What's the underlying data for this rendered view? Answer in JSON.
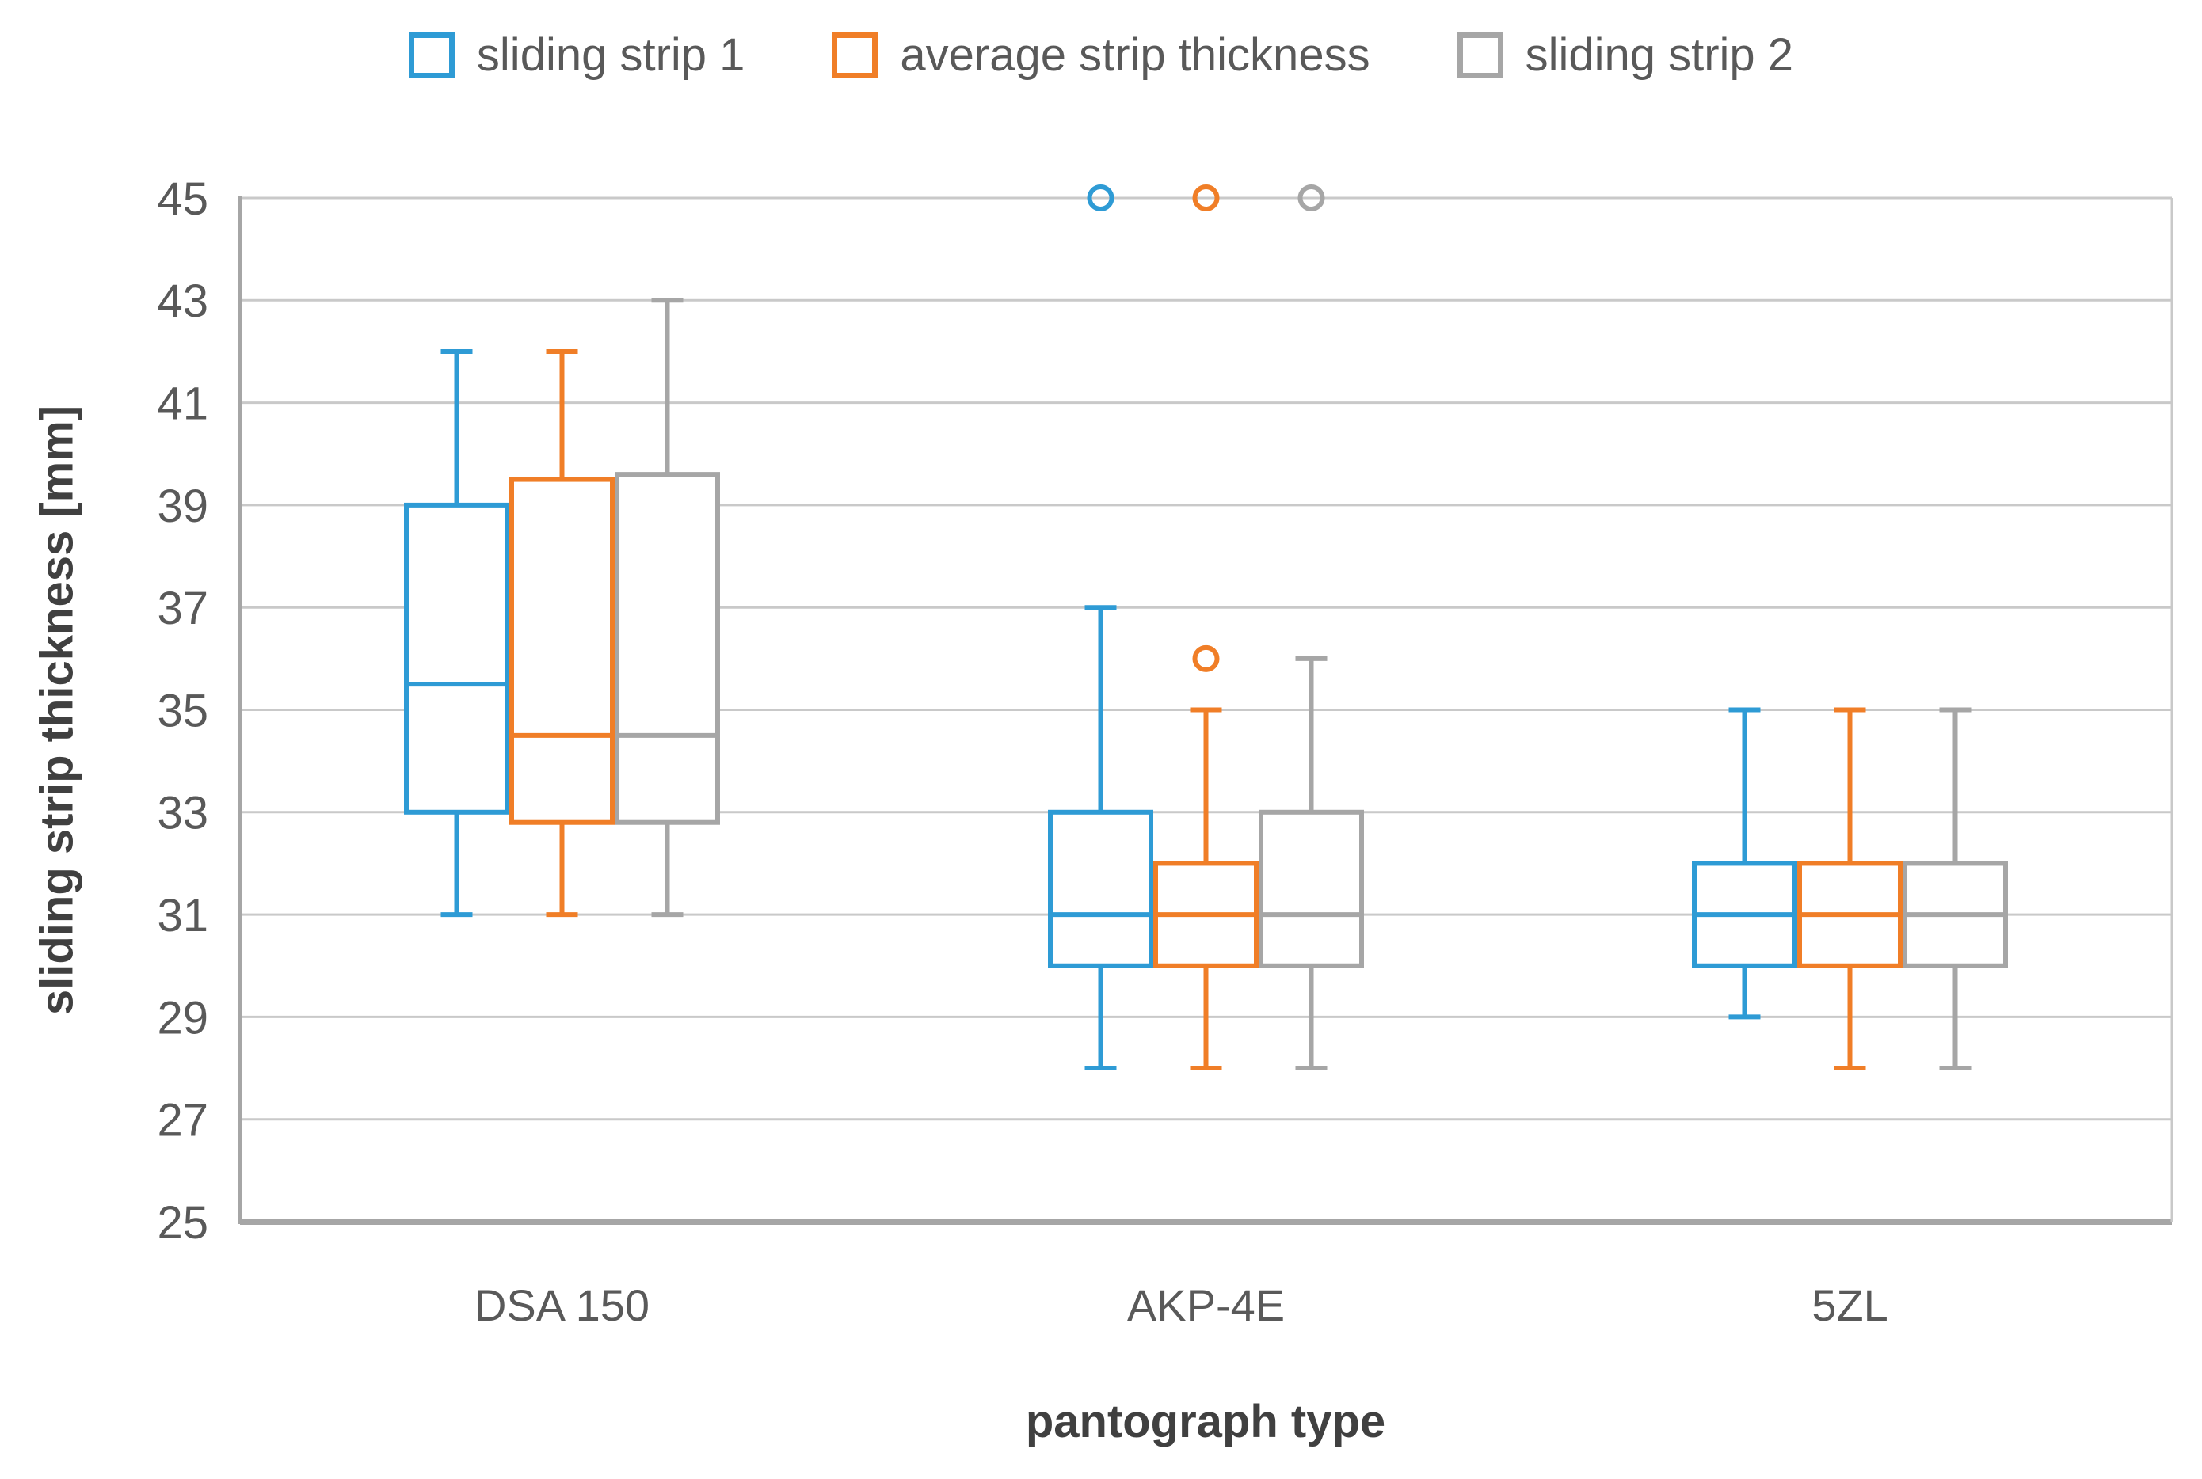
{
  "chart_data": {
    "type": "boxplot",
    "title": "",
    "xlabel": "pantograph type",
    "ylabel": "sliding strip thickness [mm]",
    "ylim": [
      25,
      45
    ],
    "ytick_step": 2,
    "ytick_labels": [
      "45",
      "43",
      "41",
      "39",
      "37",
      "35",
      "33",
      "31",
      "29",
      "27",
      "25"
    ],
    "categories": [
      "DSA 150",
      "AKP-4E",
      "5ZL"
    ],
    "grid": true,
    "legend_position": "top",
    "colors": {
      "gridline": "#C9C9C9",
      "axis": "#A6A6A6",
      "tick_text": "#595959",
      "title_text": "#404040",
      "background": "#FFFFFF"
    },
    "series": [
      {
        "name": "sliding strip 1",
        "color": "#2E9BD5",
        "boxes": [
          {
            "category": "DSA 150",
            "low": 31,
            "q1": 33,
            "median": 35.5,
            "q3": 39,
            "high": 42,
            "outliers": []
          },
          {
            "category": "AKP-4E",
            "low": 28,
            "q1": 30,
            "median": 31,
            "q3": 33,
            "high": 37,
            "outliers": [
              45
            ]
          },
          {
            "category": "5ZL",
            "low": 29,
            "q1": 30,
            "median": 31,
            "q3": 32,
            "high": 35,
            "outliers": []
          }
        ]
      },
      {
        "name": "average strip thickness",
        "color": "#F07E27",
        "boxes": [
          {
            "category": "DSA 150",
            "low": 31,
            "q1": 32.8,
            "median": 34.5,
            "q3": 39.5,
            "high": 42,
            "outliers": []
          },
          {
            "category": "AKP-4E",
            "low": 28,
            "q1": 30,
            "median": 31,
            "q3": 32,
            "high": 35,
            "outliers": [
              36,
              45
            ]
          },
          {
            "category": "5ZL",
            "low": 28,
            "q1": 30,
            "median": 31,
            "q3": 32,
            "high": 35,
            "outliers": []
          }
        ]
      },
      {
        "name": "sliding strip 2",
        "color": "#A6A6A6",
        "boxes": [
          {
            "category": "DSA 150",
            "low": 31,
            "q1": 32.8,
            "median": 34.5,
            "q3": 39.6,
            "high": 43,
            "outliers": []
          },
          {
            "category": "AKP-4E",
            "low": 28,
            "q1": 30,
            "median": 31,
            "q3": 33,
            "high": 36,
            "outliers": [
              45
            ]
          },
          {
            "category": "5ZL",
            "low": 28,
            "q1": 30,
            "median": 31,
            "q3": 32,
            "high": 35,
            "outliers": []
          }
        ]
      }
    ]
  }
}
